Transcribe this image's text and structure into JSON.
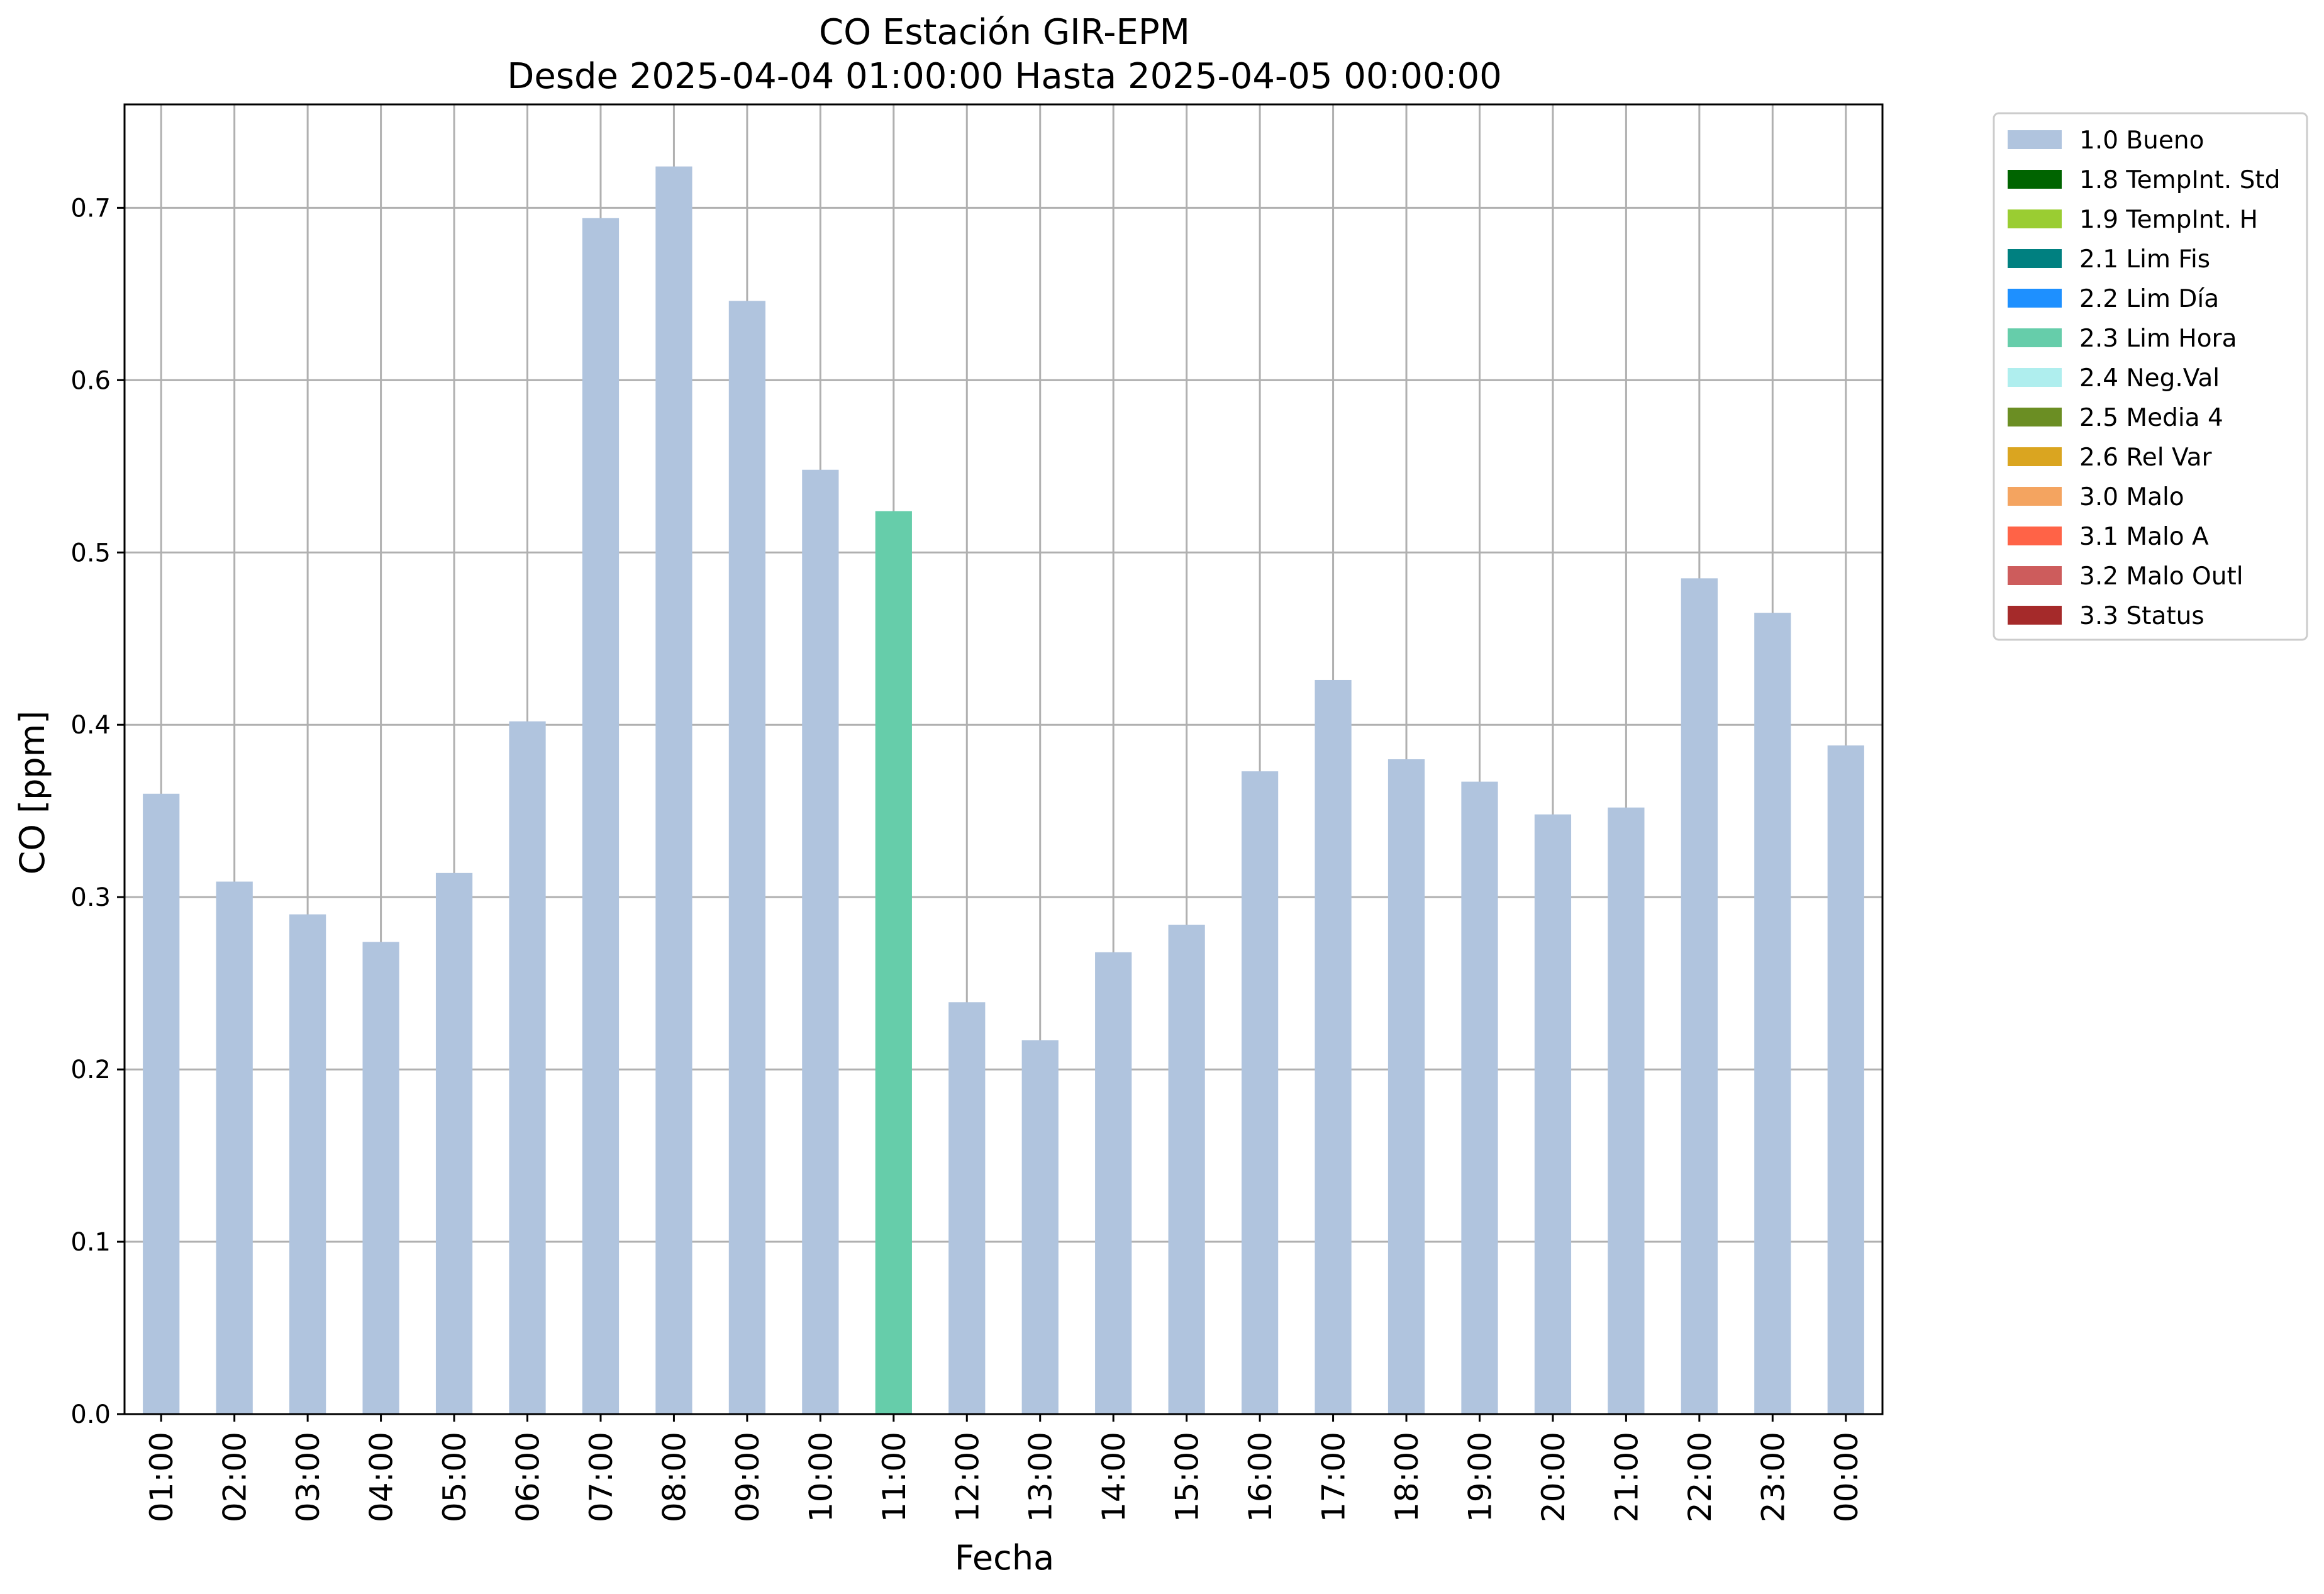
{
  "chart_data": {
    "type": "bar",
    "title": "CO Estación GIR-EPM",
    "subtitle": "Desde 2025-04-04 01:00:00 Hasta 2025-04-05 00:00:00",
    "xlabel": "Fecha",
    "ylabel": "CO [ppm]",
    "ylim": [
      0,
      0.76
    ],
    "yticks": [
      "0.0",
      "0.1",
      "0.2",
      "0.3",
      "0.4",
      "0.5",
      "0.6",
      "0.7"
    ],
    "grid": true,
    "legend_position": "outside-right-top",
    "categories": [
      "01:00",
      "02:00",
      "03:00",
      "04:00",
      "05:00",
      "06:00",
      "07:00",
      "08:00",
      "09:00",
      "10:00",
      "11:00",
      "12:00",
      "13:00",
      "14:00",
      "15:00",
      "16:00",
      "17:00",
      "18:00",
      "19:00",
      "20:00",
      "21:00",
      "22:00",
      "23:00",
      "00:00"
    ],
    "values": [
      0.36,
      0.309,
      0.29,
      0.274,
      0.314,
      0.402,
      0.694,
      0.724,
      0.646,
      0.548,
      0.524,
      0.239,
      0.217,
      0.268,
      0.284,
      0.373,
      0.426,
      0.38,
      0.367,
      0.348,
      0.352,
      0.485,
      0.465,
      0.388
    ],
    "flags": [
      "1.0 Bueno",
      "1.0 Bueno",
      "1.0 Bueno",
      "1.0 Bueno",
      "1.0 Bueno",
      "1.0 Bueno",
      "1.0 Bueno",
      "1.0 Bueno",
      "1.0 Bueno",
      "1.0 Bueno",
      "2.3 Lim Hora",
      "1.0 Bueno",
      "1.0 Bueno",
      "1.0 Bueno",
      "1.0 Bueno",
      "1.0 Bueno",
      "1.0 Bueno",
      "1.0 Bueno",
      "1.0 Bueno",
      "1.0 Bueno",
      "1.0 Bueno",
      "1.0 Bueno",
      "1.0 Bueno",
      "1.0 Bueno"
    ],
    "legend": [
      {
        "label": "1.0 Bueno",
        "color": "#b0c4de"
      },
      {
        "label": "1.8 TempInt. Std",
        "color": "#006400"
      },
      {
        "label": "1.9 TempInt. H",
        "color": "#9acd32"
      },
      {
        "label": "2.1 Lim Fis",
        "color": "#008080"
      },
      {
        "label": "2.2 Lim Día",
        "color": "#1e90ff"
      },
      {
        "label": "2.3 Lim Hora",
        "color": "#66cdaa"
      },
      {
        "label": "2.4 Neg.Val",
        "color": "#afeeee"
      },
      {
        "label": "2.5 Media 4",
        "color": "#6b8e23"
      },
      {
        "label": "2.6 Rel Var",
        "color": "#daa520"
      },
      {
        "label": "3.0 Malo",
        "color": "#f4a460"
      },
      {
        "label": "3.1 Malo A",
        "color": "#ff6347"
      },
      {
        "label": "3.2 Malo Outl",
        "color": "#cd5c5c"
      },
      {
        "label": "3.3 Status",
        "color": "#a52a2a"
      }
    ]
  }
}
